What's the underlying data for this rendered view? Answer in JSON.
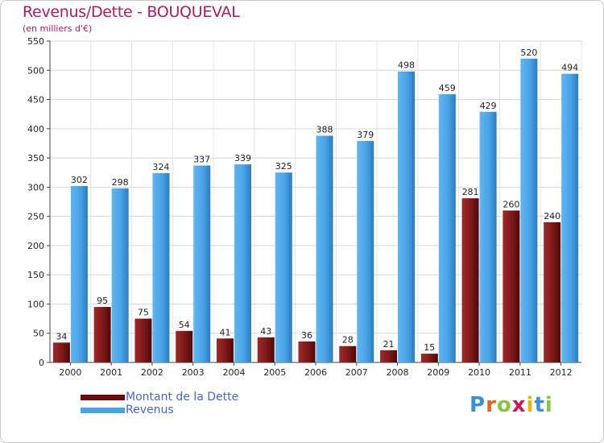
{
  "header": {
    "title": "Revenus/Dette - BOUQUEVAL",
    "subtitle": "(en milliers d'€)"
  },
  "legend": {
    "dette": "Montant de la Dette",
    "revenus": "Revenus"
  },
  "brand": {
    "logo_text": "Proxiti",
    "letter_colors": [
      "#3a8fd8",
      "#e8641e",
      "#8bc53f",
      "#d4145a",
      "#f0b400",
      "#3a8fd8",
      "#8bc53f"
    ]
  },
  "chart_data": {
    "type": "bar",
    "title": "Revenus/Dette - BOUQUEVAL",
    "ylabel": "(en milliers d'€)",
    "xlabel": "",
    "ylim": [
      0,
      550
    ],
    "yticks": [
      0,
      50,
      100,
      150,
      200,
      250,
      300,
      350,
      400,
      450,
      500,
      550
    ],
    "grid": true,
    "legend_position": "bottom-left",
    "categories": [
      "2000",
      "2001",
      "2002",
      "2003",
      "2004",
      "2005",
      "2006",
      "2007",
      "2008",
      "2009",
      "2010",
      "2011",
      "2012"
    ],
    "series": [
      {
        "name": "Montant de la Dette",
        "color": "#8b1a1a",
        "values": [
          34,
          95,
          75,
          54,
          41,
          43,
          36,
          28,
          21,
          15,
          281,
          260,
          240
        ]
      },
      {
        "name": "Revenus",
        "color": "#4aa3e6",
        "values": [
          302,
          298,
          324,
          337,
          339,
          325,
          388,
          379,
          498,
          459,
          429,
          520,
          494
        ]
      }
    ]
  }
}
